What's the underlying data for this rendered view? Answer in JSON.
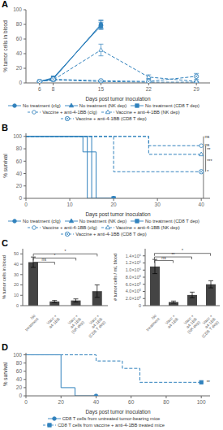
{
  "chart_data": [
    {
      "type": "line",
      "title": "A",
      "xlabel": "Days post tumor inoculation",
      "ylabel": "% tumor cells in blood",
      "xlim": [
        4,
        31
      ],
      "xticks": [
        6,
        8,
        15,
        22,
        29
      ],
      "ylim": [
        0,
        100
      ],
      "yticks": [
        0,
        20,
        40,
        60,
        80,
        100
      ],
      "legend": "bottom",
      "series": [
        {
          "name": "No treatment (cIg)",
          "x": [
            6,
            8,
            15
          ],
          "values": [
            2,
            5,
            80
          ],
          "errors": [
            0.5,
            1.5,
            5
          ],
          "marker": "filled-circle",
          "line_style": "solid"
        },
        {
          "name": "No treatment (NK dep)",
          "x": [
            6,
            8,
            15
          ],
          "values": [
            2,
            6,
            80
          ],
          "errors": [
            0.5,
            1.5,
            6
          ],
          "marker": "filled-triangle",
          "line_style": "solid"
        },
        {
          "name": "No treatment (CD8 T dep)",
          "x": [
            6,
            8,
            15
          ],
          "values": [
            2,
            7,
            78
          ],
          "errors": [
            0.5,
            2,
            5
          ],
          "marker": "filled-square",
          "line_style": "solid"
        },
        {
          "name": "Vaccine + anti-4-1BB (cIg)",
          "x": [
            6,
            8,
            15,
            22,
            29
          ],
          "values": [
            2,
            4,
            2,
            1,
            1
          ],
          "errors": [
            0.5,
            1,
            0.5,
            0.3,
            0.3
          ],
          "marker": "open-circle",
          "line_style": "dashed"
        },
        {
          "name": "Vaccine + anti-4-1BB (NK dep)",
          "x": [
            6,
            8,
            15,
            22,
            29
          ],
          "values": [
            2,
            4,
            45,
            8,
            2
          ],
          "errors": [
            0.5,
            1,
            8,
            3,
            0.5
          ],
          "marker": "open-triangle",
          "line_style": "dashed"
        },
        {
          "name": "Vaccine + anti-4-1BB (CD8 T dep)",
          "x": [
            6,
            8,
            15,
            22,
            29
          ],
          "values": [
            2,
            5,
            3,
            2,
            9
          ],
          "errors": [
            0.5,
            1.5,
            0.8,
            0.5,
            4
          ],
          "marker": "circled-x",
          "line_style": "dashed"
        }
      ]
    },
    {
      "type": "survival",
      "title": "B",
      "xlabel": "Days post tumor inoculation",
      "ylabel": "% survival",
      "xlim": [
        0,
        42
      ],
      "xticks": [
        0,
        10,
        20,
        30,
        40
      ],
      "ylim": [
        0,
        105
      ],
      "yticks": [
        0,
        20,
        40,
        60,
        80,
        100
      ],
      "legend": "bottom",
      "series": [
        {
          "name": "No treatment (cIg)",
          "x": [
            0,
            14,
            14,
            17,
            17,
            20
          ],
          "values": [
            100,
            100,
            0,
            0,
            0,
            0
          ],
          "marker": "filled-circle",
          "line_style": "solid"
        },
        {
          "name": "No treatment (NK dep)",
          "x": [
            0,
            15,
            15,
            19,
            19,
            20
          ],
          "values": [
            100,
            100,
            0,
            0,
            0,
            0
          ],
          "marker": "filled-triangle",
          "line_style": "solid"
        },
        {
          "name": "No treatment (CD8 T dep)",
          "x": [
            0,
            13,
            13,
            16,
            16,
            20,
            20
          ],
          "values": [
            100,
            100,
            75,
            75,
            0,
            0,
            0
          ],
          "marker": "filled-square",
          "line_style": "solid"
        },
        {
          "name": "Vaccine + anti-4-1BB (cIg)",
          "x": [
            0,
            28,
            28,
            40
          ],
          "values": [
            100,
            100,
            85,
            85
          ],
          "marker": "open-circle",
          "line_style": "dashed"
        },
        {
          "name": "Vaccine + anti-4-1BB (NK dep)",
          "x": [
            0,
            28,
            28,
            40
          ],
          "values": [
            100,
            100,
            71,
            71
          ],
          "marker": "open-triangle",
          "line_style": "dashed"
        },
        {
          "name": "Vaccine + anti-4-1BB (CD8 T dep)",
          "x": [
            0,
            20,
            20,
            40
          ],
          "values": [
            100,
            100,
            43,
            43
          ],
          "marker": "circled-x",
          "line_style": "dashed"
        }
      ],
      "brackets": [
        {
          "x": 40.5,
          "y1": 100,
          "y2": 75
        },
        {
          "x": 40.5,
          "y1": 75,
          "y2": 0
        },
        {
          "x": 41,
          "y1": 85,
          "y2": 71
        },
        {
          "x": 41,
          "y1": 71,
          "y2": 43
        }
      ],
      "annotations": [
        {
          "text": "ns",
          "x": 40.8,
          "y": 100
        },
        {
          "text": "ns",
          "x": 40.8,
          "y": 87
        },
        {
          "text": "**",
          "x": 41.3,
          "y": 79
        },
        {
          "text": "***",
          "x": 41.3,
          "y": 60
        },
        {
          "text": "*",
          "x": 41.3,
          "y": 43
        }
      ]
    },
    {
      "type": "bar",
      "title": "C",
      "ylabel": "% tumor cells in blood",
      "categories": [
        "No\ntreatment",
        "Vacc +\na4-1BB",
        "Vacc +\na4-1BB\n(NK dep)",
        "Vacc +\na4-1BB\n(CD8 T dep)"
      ],
      "values": [
        42,
        4,
        5,
        14
      ],
      "errors": [
        5,
        1,
        1.5,
        6
      ],
      "color": "#444444",
      "ylim": [
        0,
        55
      ],
      "yticks": [
        0,
        10,
        20,
        30,
        40,
        50
      ],
      "significance": [
        {
          "from": "No\ntreatment",
          "to": "Vacc +\na4-1BB\n(CD8 T dep)",
          "y": 50,
          "text": "*"
        },
        {
          "from": "No\ntreatment",
          "to": "Vacc +\na4-1BB\n(NK dep)",
          "y": 46,
          "text": "*"
        },
        {
          "from": "No\ntreatment",
          "to": "Vacc +\na4-1BB",
          "y": 42,
          "text": "ns"
        }
      ]
    },
    {
      "type": "bar",
      "ylabel": "# tumor cells / mL blood",
      "categories": [
        "No\ntreatment",
        "Vacc +\na4-1BB",
        "Vacc +\na4-1BB\n(NK dep)",
        "Vacc +\na4-1BB\n(CD8 T dep)"
      ],
      "values": [
        1100000,
        100000,
        300000,
        600000
      ],
      "errors": [
        200000,
        30000,
        80000,
        100000
      ],
      "color": "#444444",
      "ylim": [
        0,
        1600000
      ],
      "yticks": [
        0,
        {
          "value": 200000,
          "label": "2.0×10⁵"
        },
        {
          "value": 400000,
          "label": "4.0×10⁵"
        },
        {
          "value": 600000,
          "label": "6.0×10⁵"
        },
        {
          "value": 800000,
          "label": "8.0×10⁵"
        },
        {
          "value": 1000000,
          "label": "1.0×10⁶"
        },
        {
          "value": 1200000,
          "label": "1.2×10⁶"
        },
        {
          "value": 1400000,
          "label": "1.4×10⁶"
        }
      ],
      "significance": [
        {
          "from": "No\ntreatment",
          "to": "Vacc +\na4-1BB\n(CD8 T dep)",
          "y": 1470000,
          "text": "*"
        },
        {
          "from": "No\ntreatment",
          "to": "Vacc +\na4-1BB\n(NK dep)",
          "y": 1370000,
          "text": "**"
        },
        {
          "from": "No\ntreatment",
          "to": "Vacc +\na4-1BB",
          "y": 1270000,
          "text": "ns"
        }
      ]
    },
    {
      "type": "survival",
      "title": "D",
      "xlabel": "Days post tumor inoculation",
      "ylabel": "% survival",
      "xlim": [
        0,
        105
      ],
      "xticks": [
        0,
        20,
        40,
        60,
        80,
        100
      ],
      "ylim": [
        0,
        105
      ],
      "yticks": [
        0,
        20,
        40,
        60,
        80,
        100
      ],
      "legend": "bottom",
      "series": [
        {
          "name": "CD8 T cells from untreated tumor-bearing mice",
          "x": [
            0,
            20,
            20,
            28,
            28,
            40
          ],
          "values": [
            100,
            100,
            20,
            20,
            0,
            0
          ],
          "marker": "filled-circle",
          "line_style": "solid"
        },
        {
          "name": "CD8 T cells from vaccine + anti-4-1BB treated mice",
          "x": [
            0,
            40,
            40,
            55,
            55,
            65,
            65,
            100
          ],
          "values": [
            100,
            100,
            85,
            85,
            67,
            67,
            33,
            33
          ],
          "marker": "filled-square",
          "line_style": "dashed"
        }
      ],
      "annotations": [
        {
          "text": "**",
          "x": 103,
          "y": 33
        }
      ]
    }
  ]
}
